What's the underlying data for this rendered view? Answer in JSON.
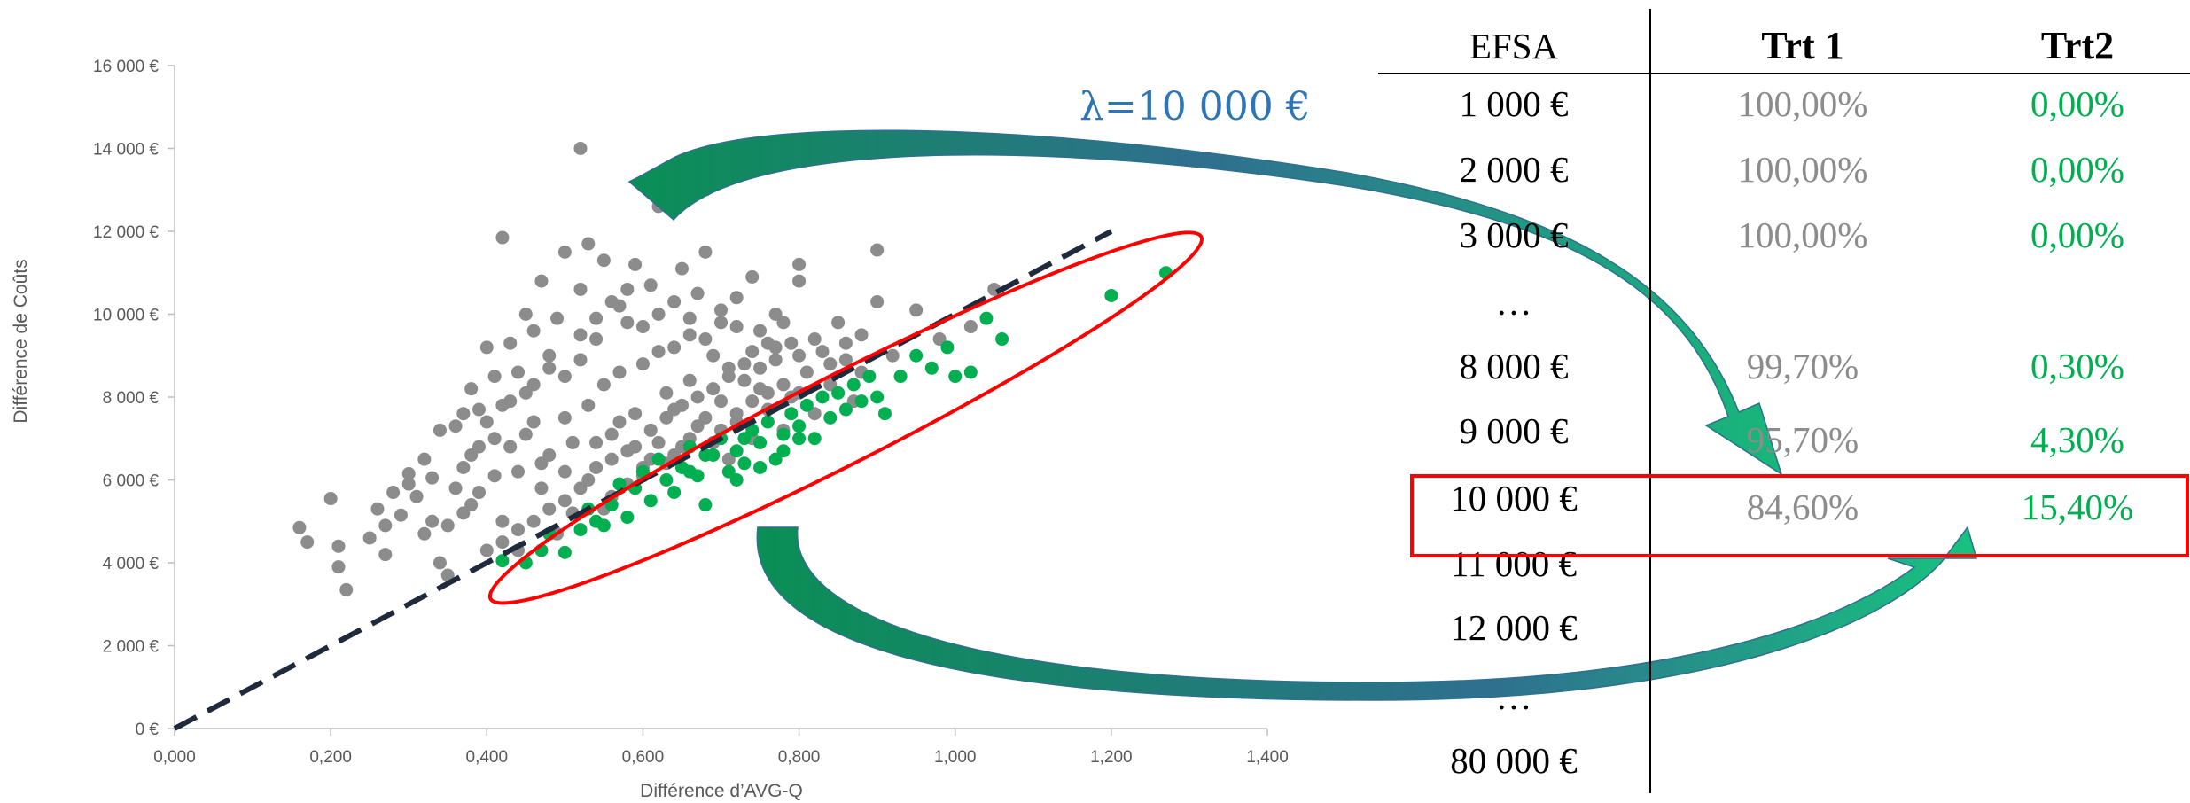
{
  "colors": {
    "grey_points": "#8c8c8c",
    "green_points": "#00b050",
    "dashed_line": "#1f2a3c",
    "highlight": "#ff0000",
    "lambda_text": "#2e75b6",
    "arrow": "#0a9a5a"
  },
  "lambda_label": "λ=10 000 €",
  "chart_data": {
    "type": "scatter",
    "title": "",
    "xlabel": "Différence d’AVG-Q",
    "ylabel": "Différence de Coûts",
    "xlim": [
      0,
      1.4
    ],
    "ylim": [
      0,
      16000
    ],
    "x_ticks": [
      "0,000",
      "0,200",
      "0,400",
      "0,600",
      "0,800",
      "1,000",
      "1,200",
      "1,400"
    ],
    "y_ticks": [
      "0 €",
      "2 000 €",
      "4 000 €",
      "6 000 €",
      "8 000 €",
      "10 000 €",
      "12 000 €",
      "14 000 €",
      "16 000 €"
    ],
    "threshold_line": {
      "slope": 10000,
      "x_range": [
        0,
        1.2
      ]
    },
    "series": [
      {
        "values": [
          [
            0.16,
            4850
          ],
          [
            0.17,
            4500
          ],
          [
            0.2,
            5550
          ],
          [
            0.21,
            3900
          ],
          [
            0.21,
            4400
          ],
          [
            0.22,
            3350
          ],
          [
            0.25,
            4600
          ],
          [
            0.26,
            5300
          ],
          [
            0.27,
            4200
          ],
          [
            0.27,
            4900
          ],
          [
            0.28,
            5700
          ],
          [
            0.29,
            5150
          ],
          [
            0.3,
            6150
          ],
          [
            0.3,
            5900
          ],
          [
            0.31,
            5600
          ],
          [
            0.32,
            6500
          ],
          [
            0.32,
            4700
          ],
          [
            0.33,
            6050
          ],
          [
            0.33,
            5000
          ],
          [
            0.34,
            4000
          ],
          [
            0.35,
            3700
          ],
          [
            0.34,
            7200
          ],
          [
            0.36,
            7300
          ],
          [
            0.37,
            7600
          ],
          [
            0.37,
            6300
          ],
          [
            0.38,
            5400
          ],
          [
            0.38,
            8200
          ],
          [
            0.39,
            7700
          ],
          [
            0.39,
            6800
          ],
          [
            0.4,
            9200
          ],
          [
            0.41,
            8500
          ],
          [
            0.41,
            7000
          ],
          [
            0.42,
            5000
          ],
          [
            0.42,
            11850
          ],
          [
            0.43,
            9300
          ],
          [
            0.43,
            7900
          ],
          [
            0.44,
            6200
          ],
          [
            0.44,
            4300
          ],
          [
            0.45,
            10000
          ],
          [
            0.45,
            8100
          ],
          [
            0.46,
            9600
          ],
          [
            0.46,
            7400
          ],
          [
            0.47,
            5800
          ],
          [
            0.47,
            10800
          ],
          [
            0.48,
            8700
          ],
          [
            0.48,
            6600
          ],
          [
            0.49,
            4700
          ],
          [
            0.49,
            9900
          ],
          [
            0.5,
            11500
          ],
          [
            0.5,
            7500
          ],
          [
            0.51,
            6900
          ],
          [
            0.51,
            5200
          ],
          [
            0.52,
            10600
          ],
          [
            0.52,
            8900
          ],
          [
            0.52,
            14000
          ],
          [
            0.53,
            7800
          ],
          [
            0.53,
            11700
          ],
          [
            0.54,
            6300
          ],
          [
            0.54,
            9400
          ],
          [
            0.55,
            8300
          ],
          [
            0.55,
            11300
          ],
          [
            0.56,
            7100
          ],
          [
            0.56,
            5600
          ],
          [
            0.57,
            10200
          ],
          [
            0.57,
            8600
          ],
          [
            0.58,
            6700
          ],
          [
            0.58,
            9800
          ],
          [
            0.59,
            11200
          ],
          [
            0.59,
            7600
          ],
          [
            0.6,
            6100
          ],
          [
            0.6,
            8800
          ],
          [
            0.61,
            10700
          ],
          [
            0.61,
            7200
          ],
          [
            0.62,
            9100
          ],
          [
            0.62,
            12600
          ],
          [
            0.63,
            6400
          ],
          [
            0.63,
            8100
          ],
          [
            0.64,
            10300
          ],
          [
            0.64,
            7700
          ],
          [
            0.65,
            11100
          ],
          [
            0.65,
            6800
          ],
          [
            0.66,
            9500
          ],
          [
            0.66,
            8400
          ],
          [
            0.67,
            7300
          ],
          [
            0.67,
            10500
          ],
          [
            0.68,
            13000
          ],
          [
            0.68,
            11500
          ],
          [
            0.69,
            6900
          ],
          [
            0.69,
            9000
          ],
          [
            0.7,
            7900
          ],
          [
            0.7,
            10100
          ],
          [
            0.71,
            8500
          ],
          [
            0.71,
            6500
          ],
          [
            0.72,
            9700
          ],
          [
            0.72,
            7400
          ],
          [
            0.73,
            8800
          ],
          [
            0.74,
            10900
          ],
          [
            0.74,
            7000
          ],
          [
            0.75,
            8200
          ],
          [
            0.75,
            9600
          ],
          [
            0.76,
            7700
          ],
          [
            0.77,
            8900
          ],
          [
            0.77,
            10000
          ],
          [
            0.78,
            7200
          ],
          [
            0.79,
            9300
          ],
          [
            0.79,
            8000
          ],
          [
            0.8,
            10800
          ],
          [
            0.8,
            11200
          ],
          [
            0.81,
            8600
          ],
          [
            0.82,
            7600
          ],
          [
            0.83,
            9100
          ],
          [
            0.84,
            8300
          ],
          [
            0.85,
            9800
          ],
          [
            0.86,
            8900
          ],
          [
            0.87,
            7900
          ],
          [
            0.88,
            9500
          ],
          [
            0.9,
            10300
          ],
          [
            0.9,
            11550
          ],
          [
            0.92,
            9000
          ],
          [
            0.95,
            10100
          ],
          [
            0.98,
            9400
          ],
          [
            1.02,
            9700
          ],
          [
            1.05,
            10600
          ],
          [
            0.55,
            5300
          ],
          [
            0.58,
            5900
          ],
          [
            0.6,
            6300
          ],
          [
            0.62,
            6900
          ],
          [
            0.64,
            6600
          ],
          [
            0.66,
            7000
          ],
          [
            0.68,
            7500
          ],
          [
            0.7,
            7200
          ],
          [
            0.72,
            7600
          ],
          [
            0.74,
            7900
          ],
          [
            0.76,
            8100
          ],
          [
            0.78,
            8300
          ],
          [
            0.8,
            8100
          ],
          [
            0.5,
            5500
          ],
          [
            0.52,
            5800
          ],
          [
            0.46,
            5000
          ],
          [
            0.48,
            5300
          ],
          [
            0.44,
            4800
          ],
          [
            0.42,
            4500
          ],
          [
            0.4,
            4300
          ],
          [
            0.56,
            6500
          ],
          [
            0.57,
            7400
          ],
          [
            0.63,
            7500
          ],
          [
            0.65,
            7800
          ],
          [
            0.67,
            8000
          ],
          [
            0.69,
            8200
          ],
          [
            0.71,
            8700
          ],
          [
            0.73,
            8400
          ],
          [
            0.75,
            8700
          ],
          [
            0.77,
            9200
          ],
          [
            0.53,
            6000
          ],
          [
            0.54,
            6900
          ],
          [
            0.59,
            6800
          ],
          [
            0.61,
            6500
          ],
          [
            0.5,
            6200
          ],
          [
            0.47,
            6400
          ],
          [
            0.45,
            7100
          ],
          [
            0.43,
            6800
          ],
          [
            0.41,
            6100
          ],
          [
            0.39,
            5700
          ],
          [
            0.37,
            5200
          ],
          [
            0.35,
            4900
          ],
          [
            0.36,
            5800
          ],
          [
            0.38,
            6600
          ],
          [
            0.4,
            7400
          ],
          [
            0.42,
            7800
          ],
          [
            0.44,
            8600
          ],
          [
            0.46,
            8300
          ],
          [
            0.48,
            9000
          ],
          [
            0.5,
            8500
          ],
          [
            0.52,
            9500
          ],
          [
            0.54,
            9900
          ],
          [
            0.56,
            10300
          ],
          [
            0.58,
            10600
          ],
          [
            0.6,
            9700
          ],
          [
            0.62,
            10000
          ],
          [
            0.64,
            9200
          ],
          [
            0.66,
            9900
          ],
          [
            0.68,
            9400
          ],
          [
            0.7,
            9800
          ],
          [
            0.72,
            10400
          ],
          [
            0.74,
            9100
          ],
          [
            0.76,
            9300
          ],
          [
            0.78,
            9800
          ],
          [
            0.8,
            9000
          ],
          [
            0.82,
            9400
          ],
          [
            0.84,
            8800
          ],
          [
            0.86,
            9300
          ],
          [
            0.88,
            8600
          ]
        ]
      },
      {
        "values": [
          [
            0.42,
            4050
          ],
          [
            0.45,
            4000
          ],
          [
            0.47,
            4300
          ],
          [
            0.48,
            4700
          ],
          [
            0.5,
            4250
          ],
          [
            0.52,
            4800
          ],
          [
            0.54,
            5000
          ],
          [
            0.56,
            5400
          ],
          [
            0.57,
            5900
          ],
          [
            0.59,
            5800
          ],
          [
            0.6,
            6200
          ],
          [
            0.61,
            5500
          ],
          [
            0.62,
            6500
          ],
          [
            0.63,
            6000
          ],
          [
            0.64,
            5700
          ],
          [
            0.65,
            6300
          ],
          [
            0.66,
            6800
          ],
          [
            0.67,
            6100
          ],
          [
            0.68,
            5400
          ],
          [
            0.69,
            6600
          ],
          [
            0.7,
            7000
          ],
          [
            0.71,
            6200
          ],
          [
            0.72,
            6700
          ],
          [
            0.73,
            6400
          ],
          [
            0.74,
            7200
          ],
          [
            0.75,
            6900
          ],
          [
            0.76,
            7400
          ],
          [
            0.77,
            6500
          ],
          [
            0.78,
            7100
          ],
          [
            0.79,
            7600
          ],
          [
            0.8,
            7300
          ],
          [
            0.81,
            7800
          ],
          [
            0.82,
            7000
          ],
          [
            0.83,
            8000
          ],
          [
            0.84,
            7500
          ],
          [
            0.85,
            8100
          ],
          [
            0.86,
            7700
          ],
          [
            0.87,
            8300
          ],
          [
            0.88,
            7900
          ],
          [
            0.89,
            8500
          ],
          [
            0.9,
            8000
          ],
          [
            0.91,
            7600
          ],
          [
            0.93,
            8500
          ],
          [
            0.95,
            9000
          ],
          [
            0.97,
            8700
          ],
          [
            0.99,
            9200
          ],
          [
            1.0,
            8500
          ],
          [
            1.02,
            8600
          ],
          [
            1.04,
            9900
          ],
          [
            1.06,
            9400
          ],
          [
            1.2,
            10450
          ],
          [
            1.27,
            11000
          ],
          [
            0.53,
            5300
          ],
          [
            0.55,
            4900
          ],
          [
            0.58,
            5100
          ],
          [
            0.66,
            6200
          ],
          [
            0.72,
            6000
          ],
          [
            0.75,
            6300
          ],
          [
            0.78,
            6700
          ],
          [
            0.8,
            7000
          ],
          [
            0.68,
            6600
          ],
          [
            0.73,
            7000
          ]
        ]
      }
    ]
  },
  "table": {
    "headers": {
      "efsa": "EFSA",
      "trt1": "Trt 1",
      "trt2": "Trt2"
    },
    "rows": [
      {
        "efsa": "1 000 €",
        "trt1": "100,00%",
        "trt2": "0,00%"
      },
      {
        "efsa": "2 000 €",
        "trt1": "100,00%",
        "trt2": "0,00%"
      },
      {
        "efsa": "3 000 €",
        "trt1": "100,00%",
        "trt2": "0,00%"
      },
      {
        "efsa": "…",
        "trt1": "",
        "trt2": ""
      },
      {
        "efsa": "8 000 €",
        "trt1": "99,70%",
        "trt2": "0,30%"
      },
      {
        "efsa": "9 000 €",
        "trt1": "95,70%",
        "trt2": "4,30%"
      },
      {
        "efsa": "10 000 €",
        "trt1": "84,60%",
        "trt2": "15,40%"
      },
      {
        "efsa": "11 000 €",
        "trt1": "",
        "trt2": ""
      },
      {
        "efsa": "12 000 €",
        "trt1": "",
        "trt2": ""
      },
      {
        "efsa": "…",
        "trt1": "",
        "trt2": ""
      },
      {
        "efsa": "80 000 €",
        "trt1": "",
        "trt2": ""
      }
    ]
  }
}
